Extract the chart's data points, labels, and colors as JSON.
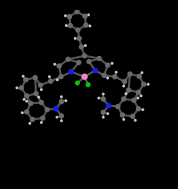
{
  "background_color": "#000000",
  "atom_colors": {
    "C": "#6a6a6a",
    "H": "#c8c8c8",
    "N": "#1a1aee",
    "B": "#ee88cc",
    "F": "#00cc00"
  },
  "bond_color": "#555555",
  "figsize": [
    1.78,
    1.89
  ],
  "dpi": 100,
  "xlim": [
    -10,
    10
  ],
  "ylim": [
    -10,
    9
  ]
}
